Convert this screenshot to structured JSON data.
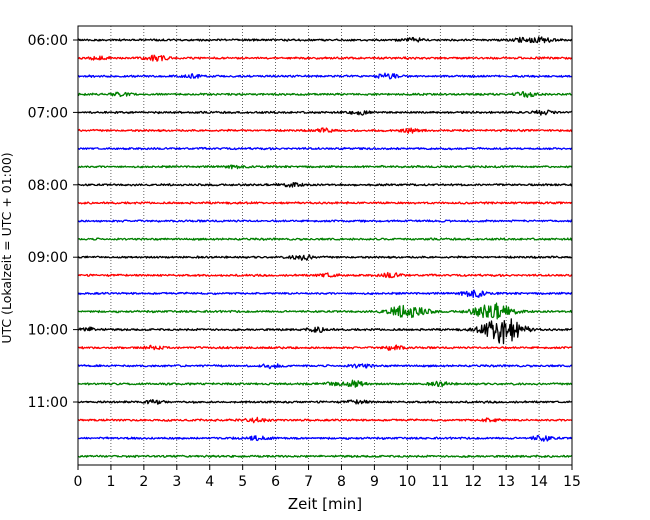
{
  "chart_data": {
    "type": "line",
    "chart_kind": "helicorder (seismogram drum plot)",
    "xlabel": "Zeit  [min]",
    "ylabel": "UTC (Lokalzeit = UTC + 01:00)",
    "xlim": [
      0,
      15
    ],
    "x_ticks": [
      0,
      1,
      2,
      3,
      4,
      5,
      6,
      7,
      8,
      9,
      10,
      11,
      12,
      13,
      14,
      15
    ],
    "x_tick_labels": [
      "0",
      "1",
      "2",
      "3",
      "4",
      "5",
      "6",
      "7",
      "8",
      "9",
      "10",
      "11",
      "12",
      "13",
      "14",
      "15"
    ],
    "y_tick_labels": [
      "06:00",
      "07:00",
      "08:00",
      "09:00",
      "10:00",
      "11:00"
    ],
    "trace_interval_minutes": 15,
    "grid": "vertical dotted lines at each minute",
    "trace_colors": [
      "#000000",
      "#ff0000",
      "#0000ff",
      "#008000"
    ],
    "traces": [
      {
        "start": "06:00",
        "color": "#000000",
        "events": [
          {
            "t": 10.2,
            "amp": 0.35
          },
          {
            "t": 13.5,
            "amp": 0.35
          },
          {
            "t": 14.1,
            "amp": 0.45
          }
        ]
      },
      {
        "start": "06:15",
        "color": "#ff0000",
        "events": [
          {
            "t": 0.6,
            "amp": 0.3
          },
          {
            "t": 2.4,
            "amp": 0.45
          }
        ]
      },
      {
        "start": "06:30",
        "color": "#0000ff",
        "events": [
          {
            "t": 9.4,
            "amp": 0.45
          },
          {
            "t": 3.5,
            "amp": 0.3
          }
        ]
      },
      {
        "start": "06:45",
        "color": "#008000",
        "events": [
          {
            "t": 1.3,
            "amp": 0.3
          },
          {
            "t": 13.6,
            "amp": 0.4
          }
        ]
      },
      {
        "start": "07:00",
        "color": "#000000",
        "events": [
          {
            "t": 8.6,
            "amp": 0.4
          },
          {
            "t": 14.1,
            "amp": 0.35
          }
        ]
      },
      {
        "start": "07:15",
        "color": "#ff0000",
        "events": [
          {
            "t": 7.5,
            "amp": 0.3
          },
          {
            "t": 10.1,
            "amp": 0.35
          }
        ]
      },
      {
        "start": "07:30",
        "color": "#0000ff",
        "events": []
      },
      {
        "start": "07:45",
        "color": "#008000",
        "events": [
          {
            "t": 4.8,
            "amp": 0.3
          }
        ]
      },
      {
        "start": "08:00",
        "color": "#000000",
        "events": [
          {
            "t": 6.5,
            "amp": 0.3
          }
        ]
      },
      {
        "start": "08:15",
        "color": "#ff0000",
        "events": []
      },
      {
        "start": "08:30",
        "color": "#0000ff",
        "events": []
      },
      {
        "start": "08:45",
        "color": "#008000",
        "events": []
      },
      {
        "start": "09:00",
        "color": "#000000",
        "events": [
          {
            "t": 6.8,
            "amp": 0.45
          }
        ]
      },
      {
        "start": "09:15",
        "color": "#ff0000",
        "events": [
          {
            "t": 7.6,
            "amp": 0.3
          },
          {
            "t": 9.5,
            "amp": 0.4
          }
        ]
      },
      {
        "start": "09:30",
        "color": "#0000ff",
        "events": [
          {
            "t": 12.0,
            "amp": 0.85
          }
        ]
      },
      {
        "start": "09:45",
        "color": "#008000",
        "events": [
          {
            "t": 10.0,
            "amp": 1.1
          },
          {
            "t": 12.6,
            "amp": 1.4
          }
        ]
      },
      {
        "start": "10:00",
        "color": "#000000",
        "events": [
          {
            "t": 0.3,
            "amp": 0.35
          },
          {
            "t": 7.3,
            "amp": 0.35
          },
          {
            "t": 12.9,
            "amp": 2.5
          }
        ]
      },
      {
        "start": "10:15",
        "color": "#ff0000",
        "events": [
          {
            "t": 2.3,
            "amp": 0.3
          },
          {
            "t": 9.6,
            "amp": 0.4
          }
        ]
      },
      {
        "start": "10:30",
        "color": "#0000ff",
        "events": [
          {
            "t": 5.9,
            "amp": 0.35
          },
          {
            "t": 8.6,
            "amp": 0.35
          }
        ]
      },
      {
        "start": "10:45",
        "color": "#008000",
        "events": [
          {
            "t": 7.8,
            "amp": 0.35
          },
          {
            "t": 8.4,
            "amp": 0.55
          },
          {
            "t": 11.0,
            "amp": 0.35
          }
        ]
      },
      {
        "start": "11:00",
        "color": "#000000",
        "events": [
          {
            "t": 2.3,
            "amp": 0.3
          },
          {
            "t": 8.5,
            "amp": 0.3
          }
        ]
      },
      {
        "start": "11:15",
        "color": "#ff0000",
        "events": [
          {
            "t": 5.4,
            "amp": 0.4
          },
          {
            "t": 12.5,
            "amp": 0.3
          }
        ]
      },
      {
        "start": "11:30",
        "color": "#0000ff",
        "events": [
          {
            "t": 5.5,
            "amp": 0.35
          },
          {
            "t": 14.1,
            "amp": 0.45
          }
        ]
      },
      {
        "start": "11:45",
        "color": "#008000",
        "events": []
      }
    ]
  }
}
